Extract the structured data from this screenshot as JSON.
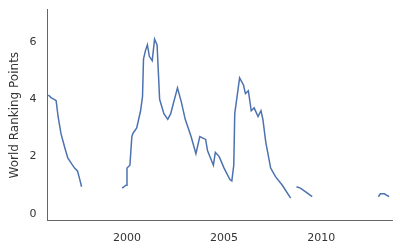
{
  "chart_data": {
    "type": "line",
    "y_label": "World Ranking Points",
    "x": [
      1995.95,
      1996.1,
      1996.25,
      1996.35,
      1996.45,
      1996.6,
      1996.8,
      1996.95,
      1997.1,
      1997.3,
      1997.45,
      1997.55,
      1997.66,
      1998.7,
      1999.75,
      1999.95,
      2000.0,
      2000.15,
      2000.25,
      2000.3,
      2000.5,
      2000.7,
      2000.8,
      2000.85,
      2000.95,
      2001.05,
      2001.15,
      2001.3,
      2001.42,
      2001.55,
      2001.68,
      2001.9,
      2002.1,
      2002.25,
      2002.6,
      2002.8,
      2003.0,
      2003.3,
      2003.55,
      2003.75,
      2004.05,
      2004.15,
      2004.45,
      2004.55,
      2004.75,
      2005.0,
      2005.3,
      2005.4,
      2005.5,
      2005.55,
      2005.65,
      2005.8,
      2006.0,
      2006.1,
      2006.25,
      2006.4,
      2006.55,
      2006.75,
      2006.9,
      2007.0,
      2007.15,
      2007.4,
      2007.65,
      2008.0,
      2008.43,
      2008.6,
      2008.73,
      2008.93,
      2009.24,
      2009.54,
      2011.0,
      2012.95,
      2013.05,
      2013.25,
      2013.5
    ],
    "values": [
      4.15,
      4.05,
      4.0,
      3.95,
      3.4,
      2.8,
      2.3,
      1.95,
      1.8,
      1.6,
      1.5,
      1.25,
      0.95,
      null,
      0.9,
      1.0,
      1.6,
      1.7,
      2.7,
      2.8,
      3.0,
      3.6,
      4.1,
      5.4,
      5.7,
      5.9,
      5.5,
      5.35,
      6.1,
      5.9,
      4.0,
      3.5,
      3.3,
      3.5,
      4.4,
      3.9,
      3.3,
      2.7,
      2.1,
      2.7,
      2.6,
      2.2,
      1.7,
      2.15,
      2.0,
      1.6,
      1.2,
      1.15,
      1.7,
      3.5,
      4.0,
      4.75,
      4.5,
      4.2,
      4.3,
      3.6,
      3.7,
      3.4,
      3.6,
      3.3,
      2.5,
      1.6,
      1.3,
      1.0,
      0.55,
      null,
      0.95,
      0.9,
      0.75,
      0.6,
      null,
      0.6,
      0.7,
      0.7,
      0.6
    ],
    "color": "#4c72b0",
    "xlim": [
      1995.9,
      2013.65
    ],
    "xticks": [
      2000,
      2005,
      2010
    ],
    "ylim": [
      -0.24,
      7.13
    ],
    "yticks": [
      0,
      2,
      4,
      6
    ],
    "grid": false
  }
}
